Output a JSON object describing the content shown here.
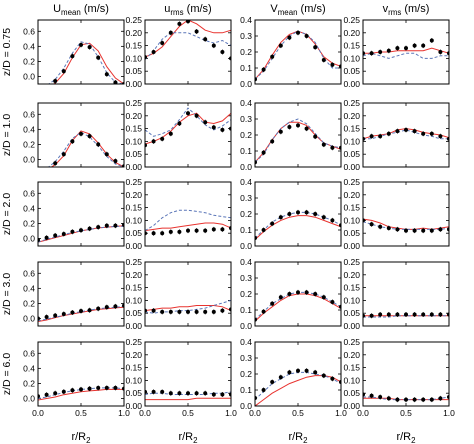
{
  "figure": {
    "columns": [
      {
        "base": "U",
        "sub": "mean",
        "unit": " (m/s)"
      },
      {
        "base": "u",
        "sub": "rms",
        "unit": " (m/s)"
      },
      {
        "base": "V",
        "sub": "mean",
        "unit": " (m/s)"
      },
      {
        "base": "v",
        "sub": "rms",
        "unit": " (m/s)"
      }
    ],
    "rows": [
      "z/D = 0.75",
      "z/D = 1.0",
      "z/D = 2.0",
      "z/D = 3.0",
      "z/D = 6.0"
    ],
    "xlabel": {
      "base": "r/R",
      "sub": "2"
    },
    "x_ticks": [
      "0.0",
      "0.5",
      "1.0"
    ],
    "y_ticks": [
      [
        "0.0",
        "0.2",
        "0.4",
        "0.6"
      ],
      [
        "0.00",
        "0.05",
        "0.10",
        "0.15",
        "0.20",
        "0.25"
      ],
      [
        "0.0",
        "0.1",
        "0.2",
        "0.3",
        "0.4"
      ],
      [
        "0.00",
        "0.05",
        "0.10",
        "0.15",
        "0.20",
        "0.25"
      ]
    ],
    "series_colors": {
      "measured": "#000000",
      "red_line": "#e8332f",
      "blue_dashed": "#5b76b8"
    }
  },
  "chart_data": {
    "type": "scatter",
    "grid": "5 rows x 4 columns of panels",
    "xlim": [
      0,
      1
    ],
    "ylim": [
      [
        -0.1,
        0.75
      ],
      [
        0,
        0.25
      ],
      [
        0,
        0.4
      ],
      [
        0,
        0.25
      ]
    ],
    "series": [
      {
        "style": "markers with error bars"
      },
      {
        "style": "solid red line"
      },
      {
        "style": "dashed blue line"
      }
    ],
    "x": [
      0.0,
      0.1,
      0.2,
      0.3,
      0.4,
      0.5,
      0.6,
      0.7,
      0.8,
      0.9,
      1.0
    ],
    "panels": [
      {
        "row": 0,
        "col": 0,
        "measured": [
          -0.16,
          -0.13,
          -0.06,
          0.07,
          0.27,
          0.42,
          0.39,
          0.25,
          0.03,
          -0.08,
          -0.1
        ],
        "red": [
          -0.17,
          -0.15,
          -0.09,
          0.04,
          0.25,
          0.42,
          0.44,
          0.34,
          0.13,
          -0.02,
          -0.1
        ],
        "blue": [
          -0.16,
          -0.12,
          -0.04,
          0.11,
          0.31,
          0.46,
          0.43,
          0.26,
          0.05,
          -0.08,
          -0.1
        ]
      },
      {
        "row": 0,
        "col": 1,
        "measured": [
          0.105,
          0.125,
          0.16,
          0.2,
          0.235,
          0.245,
          0.205,
          0.175,
          0.15,
          0.125,
          0.1
        ],
        "red": [
          0.105,
          0.12,
          0.145,
          0.185,
          0.225,
          0.25,
          0.235,
          0.21,
          0.2,
          0.2,
          0.21
        ],
        "blue": [
          0.095,
          0.13,
          0.175,
          0.2,
          0.2,
          0.2,
          0.185,
          0.17,
          0.16,
          0.17,
          0.15
        ]
      },
      {
        "row": 0,
        "col": 2,
        "measured": [
          0.03,
          0.09,
          0.17,
          0.24,
          0.29,
          0.32,
          0.3,
          0.23,
          0.15,
          0.12,
          0.11
        ],
        "red": [
          0.03,
          0.09,
          0.18,
          0.26,
          0.31,
          0.33,
          0.31,
          0.25,
          0.17,
          0.13,
          0.11
        ],
        "blue": [
          0.03,
          0.08,
          0.16,
          0.24,
          0.3,
          0.33,
          0.31,
          0.26,
          0.16,
          0.1,
          0.1
        ]
      },
      {
        "row": 0,
        "col": 3,
        "measured": [
          0.12,
          0.12,
          0.125,
          0.13,
          0.14,
          0.14,
          0.15,
          0.15,
          0.17,
          0.125,
          0.12
        ],
        "red": [
          0.12,
          0.12,
          0.125,
          0.125,
          0.13,
          0.13,
          0.13,
          0.13,
          0.14,
          0.13,
          0.12
        ],
        "blue": [
          0.11,
          0.12,
          0.11,
          0.1,
          0.11,
          0.12,
          0.12,
          0.1,
          0.1,
          0.11,
          0.11
        ]
      },
      {
        "row": 1,
        "col": 0,
        "measured": [
          -0.16,
          -0.13,
          -0.05,
          0.07,
          0.24,
          0.34,
          0.31,
          0.2,
          0.07,
          -0.02,
          -0.09
        ],
        "red": [
          -0.17,
          -0.14,
          -0.07,
          0.05,
          0.25,
          0.38,
          0.34,
          0.22,
          0.07,
          -0.04,
          -0.1
        ],
        "blue": [
          -0.16,
          -0.12,
          -0.03,
          0.11,
          0.28,
          0.36,
          0.3,
          0.18,
          0.04,
          -0.06,
          -0.1
        ]
      },
      {
        "row": 1,
        "col": 1,
        "measured": [
          0.085,
          0.1,
          0.11,
          0.13,
          0.17,
          0.21,
          0.2,
          0.175,
          0.155,
          0.145,
          0.15
        ],
        "red": [
          0.09,
          0.1,
          0.115,
          0.14,
          0.175,
          0.2,
          0.21,
          0.175,
          0.17,
          0.18,
          0.21
        ],
        "blue": [
          0.145,
          0.12,
          0.13,
          0.145,
          0.185,
          0.23,
          0.2,
          0.165,
          0.145,
          0.16,
          0.185
        ]
      },
      {
        "row": 1,
        "col": 2,
        "measured": [
          0.03,
          0.09,
          0.16,
          0.22,
          0.25,
          0.26,
          0.24,
          0.19,
          0.14,
          0.12,
          0.12
        ],
        "red": [
          0.03,
          0.09,
          0.17,
          0.24,
          0.28,
          0.28,
          0.26,
          0.2,
          0.15,
          0.13,
          0.11
        ],
        "blue": [
          0.03,
          0.08,
          0.17,
          0.24,
          0.28,
          0.3,
          0.27,
          0.21,
          0.15,
          0.13,
          0.12
        ]
      },
      {
        "row": 1,
        "col": 3,
        "measured": [
          0.11,
          0.12,
          0.12,
          0.13,
          0.14,
          0.145,
          0.14,
          0.13,
          0.13,
          0.12,
          0.11
        ],
        "red": [
          0.11,
          0.12,
          0.125,
          0.13,
          0.145,
          0.15,
          0.145,
          0.135,
          0.13,
          0.125,
          0.115
        ],
        "blue": [
          0.11,
          0.11,
          0.12,
          0.13,
          0.135,
          0.145,
          0.135,
          0.125,
          0.12,
          0.11,
          0.11
        ]
      },
      {
        "row": 2,
        "col": 0,
        "measured": [
          -0.02,
          0.01,
          0.04,
          0.06,
          0.09,
          0.11,
          0.13,
          0.15,
          0.17,
          0.17,
          0.18
        ],
        "red": [
          -0.05,
          -0.02,
          0.01,
          0.04,
          0.07,
          0.1,
          0.12,
          0.14,
          0.15,
          0.16,
          0.17
        ],
        "blue": [
          -0.05,
          -0.01,
          0.02,
          0.05,
          0.08,
          0.1,
          0.12,
          0.14,
          0.15,
          0.16,
          0.16
        ]
      },
      {
        "row": 2,
        "col": 1,
        "measured": [
          0.05,
          0.05,
          0.05,
          0.055,
          0.055,
          0.06,
          0.06,
          0.06,
          0.065,
          0.065,
          0.07
        ],
        "red": [
          0.06,
          0.065,
          0.07,
          0.07,
          0.075,
          0.08,
          0.085,
          0.09,
          0.09,
          0.085,
          0.07
        ],
        "blue": [
          0.06,
          0.08,
          0.11,
          0.13,
          0.14,
          0.14,
          0.135,
          0.13,
          0.12,
          0.115,
          0.11
        ]
      },
      {
        "row": 2,
        "col": 2,
        "measured": [
          0.05,
          0.1,
          0.14,
          0.18,
          0.2,
          0.21,
          0.21,
          0.2,
          0.18,
          0.16,
          0.13
        ],
        "red": [
          0.04,
          0.09,
          0.13,
          0.16,
          0.18,
          0.19,
          0.19,
          0.18,
          0.16,
          0.14,
          0.12
        ],
        "blue": [
          0.05,
          0.1,
          0.15,
          0.18,
          0.2,
          0.21,
          0.21,
          0.2,
          0.18,
          0.16,
          0.13
        ]
      },
      {
        "row": 2,
        "col": 3,
        "measured": [
          0.1,
          0.085,
          0.075,
          0.07,
          0.065,
          0.06,
          0.06,
          0.06,
          0.06,
          0.065,
          0.065
        ],
        "red": [
          0.105,
          0.1,
          0.09,
          0.075,
          0.07,
          0.065,
          0.065,
          0.07,
          0.065,
          0.07,
          0.075
        ],
        "blue": [
          0.095,
          0.085,
          0.075,
          0.07,
          0.065,
          0.065,
          0.065,
          0.065,
          0.065,
          0.065,
          0.07
        ]
      },
      {
        "row": 3,
        "col": 0,
        "measured": [
          0.0,
          0.02,
          0.04,
          0.06,
          0.08,
          0.1,
          0.11,
          0.13,
          0.15,
          0.16,
          0.17
        ],
        "red": [
          -0.04,
          -0.02,
          0.01,
          0.04,
          0.06,
          0.08,
          0.1,
          0.12,
          0.13,
          0.14,
          0.15
        ],
        "blue": [
          -0.03,
          -0.01,
          0.02,
          0.04,
          0.07,
          0.09,
          0.11,
          0.13,
          0.14,
          0.15,
          0.16
        ]
      },
      {
        "row": 3,
        "col": 1,
        "measured": [
          0.06,
          0.06,
          0.055,
          0.055,
          0.055,
          0.055,
          0.055,
          0.055,
          0.055,
          0.06,
          0.065
        ],
        "red": [
          0.06,
          0.065,
          0.07,
          0.07,
          0.075,
          0.075,
          0.08,
          0.08,
          0.08,
          0.075,
          0.06
        ],
        "blue": [
          0.055,
          0.05,
          0.055,
          0.055,
          0.06,
          0.06,
          0.065,
          0.07,
          0.08,
          0.09,
          0.1
        ]
      },
      {
        "row": 3,
        "col": 2,
        "measured": [
          0.04,
          0.09,
          0.14,
          0.18,
          0.2,
          0.21,
          0.21,
          0.2,
          0.18,
          0.15,
          0.12
        ],
        "red": [
          0.03,
          0.08,
          0.12,
          0.16,
          0.19,
          0.2,
          0.2,
          0.19,
          0.17,
          0.14,
          0.11
        ],
        "blue": [
          0.04,
          0.09,
          0.14,
          0.17,
          0.2,
          0.21,
          0.21,
          0.2,
          0.18,
          0.15,
          0.12
        ]
      },
      {
        "row": 3,
        "col": 3,
        "measured": [
          0.04,
          0.04,
          0.045,
          0.045,
          0.045,
          0.045,
          0.045,
          0.045,
          0.045,
          0.045,
          0.045
        ],
        "red": [
          0.04,
          0.04,
          0.04,
          0.04,
          0.04,
          0.04,
          0.04,
          0.04,
          0.04,
          0.04,
          0.04
        ],
        "blue": [
          0.035,
          0.035,
          0.035,
          0.035,
          0.04,
          0.04,
          0.04,
          0.04,
          0.04,
          0.04,
          0.04
        ]
      },
      {
        "row": 4,
        "col": 0,
        "measured": [
          0.03,
          0.05,
          0.07,
          0.09,
          0.11,
          0.12,
          0.13,
          0.14,
          0.14,
          0.14,
          0.13
        ],
        "red": [
          -0.02,
          0.0,
          0.02,
          0.05,
          0.07,
          0.09,
          0.1,
          0.11,
          0.12,
          0.12,
          0.12
        ],
        "blue": [
          0.0,
          0.02,
          0.05,
          0.08,
          0.1,
          0.12,
          0.13,
          0.14,
          0.14,
          0.14,
          0.13
        ]
      },
      {
        "row": 4,
        "col": 1,
        "measured": [
          0.055,
          0.055,
          0.055,
          0.05,
          0.05,
          0.05,
          0.05,
          0.05,
          0.045,
          0.045,
          0.045
        ],
        "red": [
          0.025,
          0.025,
          0.025,
          0.025,
          0.025,
          0.025,
          0.03,
          0.03,
          0.03,
          0.03,
          0.03
        ],
        "blue": [
          0.045,
          0.05,
          0.05,
          0.045,
          0.045,
          0.045,
          0.045,
          0.045,
          0.05,
          0.05,
          0.055
        ]
      },
      {
        "row": 4,
        "col": 2,
        "measured": [
          0.05,
          0.1,
          0.15,
          0.18,
          0.21,
          0.22,
          0.22,
          0.21,
          0.19,
          0.17,
          0.15
        ],
        "red": [
          0.0,
          0.04,
          0.08,
          0.11,
          0.14,
          0.16,
          0.18,
          0.19,
          0.19,
          0.18,
          0.15
        ],
        "blue": [
          0.04,
          0.09,
          0.14,
          0.17,
          0.2,
          0.21,
          0.21,
          0.2,
          0.19,
          0.17,
          0.14
        ]
      },
      {
        "row": 4,
        "col": 3,
        "measured": [
          0.045,
          0.04,
          0.035,
          0.03,
          0.025,
          0.025,
          0.025,
          0.025,
          0.025,
          0.03,
          0.035
        ],
        "red": [
          0.03,
          0.03,
          0.03,
          0.03,
          0.025,
          0.025,
          0.025,
          0.025,
          0.025,
          0.025,
          0.025
        ],
        "blue": [
          0.035,
          0.035,
          0.03,
          0.025,
          0.025,
          0.025,
          0.025,
          0.025,
          0.025,
          0.03,
          0.035
        ]
      }
    ]
  }
}
